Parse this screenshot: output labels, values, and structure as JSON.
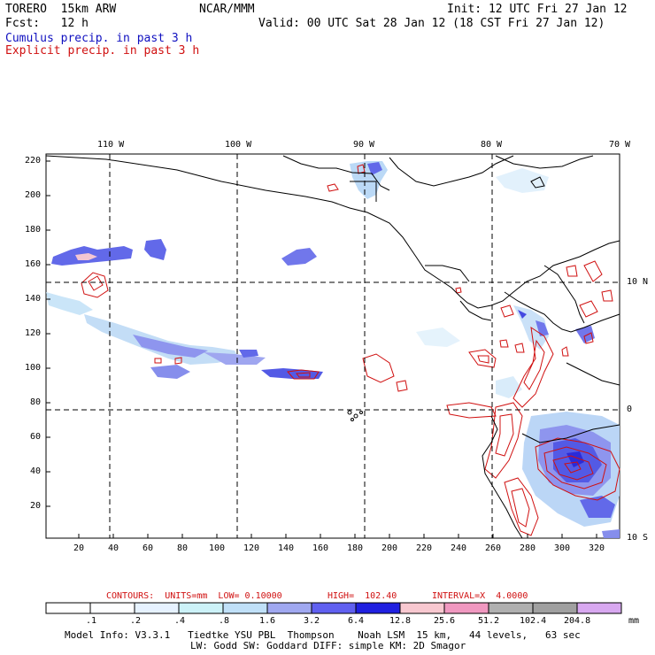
{
  "header": {
    "model": "TORERO  15km ARW",
    "org": "NCAR/MMM",
    "init": "Init: 12 UTC Fri 27 Jan 12",
    "fcst": "Fcst:   12 h",
    "valid": "Valid: 00 UTC Sat 28 Jan 12 (18 CST Fri 27 Jan 12)",
    "field1": "Cumulus precip. in past 3 h",
    "field2": "Explicit precip. in past 3 h"
  },
  "axes": {
    "lon_labels": [
      "110 W",
      "100 W",
      "90 W",
      "80 W",
      "70 W"
    ],
    "lat_labels": [
      "10 N",
      "0",
      "10 S"
    ],
    "y_ticks": [
      "220",
      "200",
      "180",
      "160",
      "140",
      "120",
      "100",
      "80",
      "60",
      "40",
      "20"
    ],
    "x_ticks": [
      "20",
      "40",
      "60",
      "80",
      "100",
      "120",
      "140",
      "160",
      "180",
      "200",
      "220",
      "240",
      "260",
      "280",
      "300",
      "320"
    ]
  },
  "contour_info": {
    "contours": "CONTOURS:  UNITS=mm  LOW= 0.10000",
    "high": "HIGH=  102.40",
    "interval": "INTERVAL=X  4.0000"
  },
  "colorbar": {
    "labels": [
      ".1",
      ".2",
      ".4",
      ".8",
      "1.6",
      "3.2",
      "6.4",
      "12.8",
      "25.6",
      "51.2",
      "102.4",
      "204.8"
    ],
    "unit": "mm",
    "colors": [
      "#ffffff",
      "#fdfeff",
      "#e6f2ff",
      "#ccf2f8",
      "#c0e0f8",
      "#a0a8f0",
      "#6060f0",
      "#2020e0",
      "#f8c8d0",
      "#f098c0",
      "#b0b0b0",
      "#a0a0a0",
      "#d8a8f0"
    ]
  },
  "footer": {
    "line1": "Model Info: V3.3.1   Tiedtke YSU PBL  Thompson    Noah LSM  15 km,   44 levels,   63 sec",
    "line2": "LW: Godd SW: Goddard DIFF: simple KM: 2D Smagor"
  }
}
